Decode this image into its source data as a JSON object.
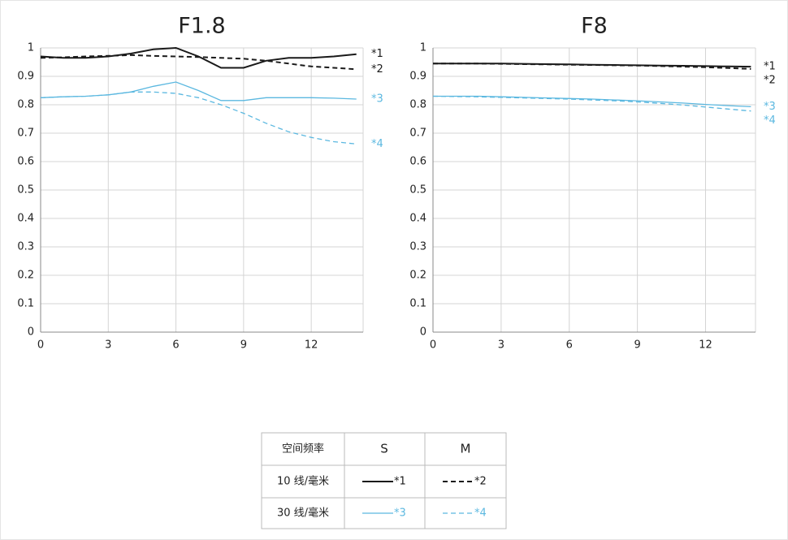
{
  "chart_data": [
    {
      "type": "line",
      "title": "F1.8",
      "x": [
        0,
        1,
        2,
        3,
        4,
        5,
        6,
        7,
        8,
        9,
        10,
        11,
        12,
        13,
        14
      ],
      "xlim": [
        0,
        14.3
      ],
      "xticks": [
        0,
        3,
        6,
        9,
        12
      ],
      "ylim": [
        0,
        1
      ],
      "yticks": [
        0,
        0.1,
        0.2,
        0.3,
        0.4,
        0.5,
        0.6,
        0.7,
        0.8,
        0.9,
        1
      ],
      "grid": true,
      "series": [
        {
          "name": "*1",
          "color": "#1a1a1a",
          "dash": false,
          "values": [
            0.97,
            0.965,
            0.965,
            0.97,
            0.98,
            0.995,
            1.0,
            0.97,
            0.93,
            0.93,
            0.955,
            0.965,
            0.965,
            0.97,
            0.978
          ]
        },
        {
          "name": "*2",
          "color": "#1a1a1a",
          "dash": true,
          "values": [
            0.965,
            0.967,
            0.97,
            0.972,
            0.975,
            0.972,
            0.97,
            0.968,
            0.965,
            0.962,
            0.955,
            0.945,
            0.935,
            0.93,
            0.925
          ]
        },
        {
          "name": "*3",
          "color": "#5bb8e0",
          "dash": false,
          "values": [
            0.825,
            0.828,
            0.83,
            0.835,
            0.845,
            0.865,
            0.88,
            0.85,
            0.815,
            0.815,
            0.825,
            0.825,
            0.825,
            0.823,
            0.82
          ]
        },
        {
          "name": "*4",
          "color": "#5bb8e0",
          "dash": true,
          "values": [
            0.825,
            0.828,
            0.83,
            0.835,
            0.845,
            0.845,
            0.84,
            0.825,
            0.8,
            0.77,
            0.735,
            0.705,
            0.685,
            0.67,
            0.662
          ]
        }
      ]
    },
    {
      "type": "line",
      "title": "F8",
      "x": [
        0,
        1,
        2,
        3,
        4,
        5,
        6,
        7,
        8,
        9,
        10,
        11,
        12,
        13,
        14
      ],
      "xlim": [
        0,
        14.2
      ],
      "xticks": [
        0,
        3,
        6,
        9,
        12
      ],
      "ylim": [
        0,
        1
      ],
      "yticks": [
        0,
        0.1,
        0.2,
        0.3,
        0.4,
        0.5,
        0.6,
        0.7,
        0.8,
        0.9,
        1
      ],
      "grid": true,
      "series": [
        {
          "name": "*1",
          "color": "#1a1a1a",
          "dash": false,
          "values": [
            0.945,
            0.945,
            0.945,
            0.945,
            0.944,
            0.943,
            0.942,
            0.941,
            0.94,
            0.939,
            0.938,
            0.937,
            0.936,
            0.935,
            0.934
          ]
        },
        {
          "name": "*2",
          "color": "#1a1a1a",
          "dash": true,
          "values": [
            0.945,
            0.945,
            0.945,
            0.944,
            0.943,
            0.942,
            0.941,
            0.94,
            0.939,
            0.938,
            0.936,
            0.934,
            0.932,
            0.929,
            0.926
          ]
        },
        {
          "name": "*3",
          "color": "#5bb8e0",
          "dash": false,
          "values": [
            0.83,
            0.83,
            0.83,
            0.828,
            0.826,
            0.824,
            0.822,
            0.82,
            0.817,
            0.814,
            0.81,
            0.806,
            0.801,
            0.797,
            0.793
          ]
        },
        {
          "name": "*4",
          "color": "#5bb8e0",
          "dash": true,
          "values": [
            0.83,
            0.829,
            0.828,
            0.826,
            0.824,
            0.822,
            0.82,
            0.817,
            0.814,
            0.81,
            0.805,
            0.799,
            0.792,
            0.785,
            0.778
          ]
        }
      ]
    }
  ],
  "legend_table": {
    "header": [
      "空间频率",
      "S",
      "M"
    ],
    "rows": [
      "10 线/毫米",
      "30 线/毫米"
    ]
  }
}
